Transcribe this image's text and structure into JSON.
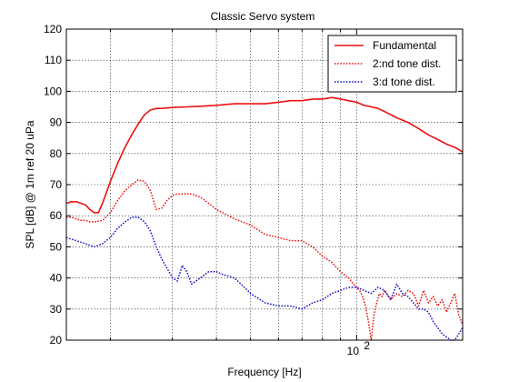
{
  "chart_data": {
    "type": "line",
    "title": "Classic Servo system",
    "xlabel": "Frequency [Hz]",
    "ylabel": "SPL [dB] @ 1m ref 20 uPa",
    "xscale": "log",
    "xlim": [
      15,
      200
    ],
    "ylim": [
      20,
      120
    ],
    "yticks": [
      20,
      30,
      40,
      50,
      60,
      70,
      80,
      90,
      100,
      110,
      120
    ],
    "ytick_labels": [
      "20",
      "30",
      "40",
      "50",
      "60",
      "70",
      "80",
      "90",
      "100",
      "110",
      "120"
    ],
    "xtick_labels": [
      {
        "value": 100,
        "base": "10",
        "exponent": "2"
      }
    ],
    "grid": true,
    "legend_position": "top-right",
    "colors": {
      "fundamental": "#ee1111",
      "second": "#ee1111",
      "third": "#1111cc",
      "grid": "#000000"
    },
    "series": [
      {
        "name": "Fundamental",
        "line_style": "solid",
        "color": "#ee1111",
        "x": [
          15,
          15.5,
          16,
          16.5,
          17,
          17.5,
          18,
          18.5,
          19,
          20,
          21,
          22,
          23,
          24,
          25,
          26,
          27,
          28,
          30,
          33,
          36,
          40,
          45,
          50,
          55,
          60,
          65,
          70,
          75,
          80,
          85,
          90,
          95,
          100,
          105,
          110,
          115,
          120,
          130,
          140,
          150,
          160,
          170,
          180,
          190,
          200
        ],
        "y": [
          64,
          64.5,
          64.5,
          64,
          63.5,
          62,
          61,
          61,
          64,
          71,
          77,
          82,
          86,
          89.5,
          92.5,
          94,
          94.5,
          94.5,
          94.8,
          95,
          95.2,
          95.5,
          96,
          96,
          96,
          96.5,
          97,
          97,
          97.5,
          97.5,
          98,
          97.5,
          97,
          96.5,
          95.5,
          95,
          94.5,
          93.5,
          91.5,
          90,
          88,
          86,
          84.5,
          83,
          82,
          80.5
        ]
      },
      {
        "name": "2:nd tone dist.",
        "line_style": "dotted",
        "color": "#ee1111",
        "x": [
          15,
          15.5,
          16,
          16.5,
          17,
          17.5,
          18,
          19,
          20,
          21,
          22,
          23,
          24,
          25,
          26,
          27,
          28,
          29,
          30,
          31,
          32,
          34,
          36,
          38,
          40,
          45,
          50,
          55,
          60,
          65,
          70,
          75,
          80,
          85,
          90,
          95,
          98,
          100,
          102,
          104,
          106,
          108,
          110,
          112,
          114,
          116,
          118,
          120,
          125,
          130,
          135,
          140,
          145,
          150,
          155,
          160,
          165,
          170,
          175,
          180,
          185,
          190,
          195,
          200
        ],
        "y": [
          59.5,
          59.5,
          59,
          58.5,
          58.5,
          58,
          58,
          58.5,
          61,
          65,
          68,
          70,
          71.5,
          71,
          68,
          62,
          62.5,
          65,
          66.5,
          67,
          67,
          67,
          66,
          64,
          62,
          59,
          57,
          54,
          53,
          52,
          52,
          50,
          47,
          45,
          42,
          40,
          38,
          37,
          36,
          34,
          31,
          26,
          20,
          28,
          32,
          35,
          34,
          36,
          33,
          35,
          34,
          36,
          35,
          31,
          36,
          32,
          34,
          31,
          33,
          29,
          32,
          35,
          28,
          25
        ]
      },
      {
        "name": "3:d tone dist.",
        "line_style": "dotted",
        "color": "#1111cc",
        "x": [
          15,
          15.5,
          16,
          16.5,
          17,
          17.5,
          18,
          19,
          20,
          21,
          22,
          23,
          24,
          25,
          26,
          27,
          28,
          29,
          30,
          31,
          32,
          33,
          34,
          36,
          38,
          40,
          42,
          45,
          48,
          50,
          55,
          60,
          65,
          70,
          75,
          80,
          85,
          90,
          95,
          100,
          105,
          110,
          115,
          120,
          125,
          130,
          135,
          140,
          145,
          150,
          155,
          160,
          165,
          170,
          175,
          180,
          185,
          190,
          195,
          200
        ],
        "y": [
          53,
          52.5,
          52,
          51.5,
          51,
          50.5,
          50,
          51,
          53,
          56,
          58,
          59.5,
          59.5,
          58,
          55,
          50,
          46,
          43,
          40,
          39,
          44,
          42,
          38,
          40,
          42,
          42,
          41,
          40,
          37,
          35,
          32,
          31,
          31,
          30,
          32,
          33,
          35,
          36,
          37,
          37,
          36,
          35,
          37,
          36,
          33,
          38,
          35,
          34,
          32,
          30,
          30,
          29,
          26,
          24,
          22,
          21,
          20,
          20,
          22,
          24
        ]
      }
    ]
  }
}
